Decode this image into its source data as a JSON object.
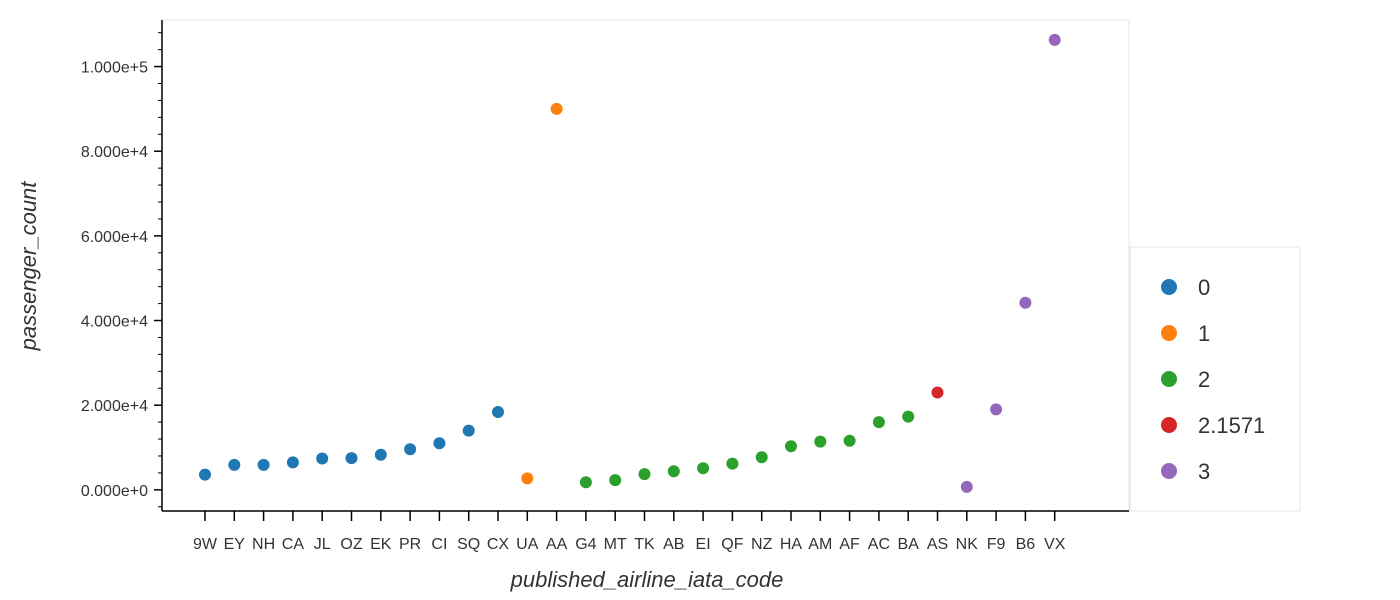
{
  "chart_data": {
    "type": "scatter",
    "xlabel": "published_airline_iata_code",
    "ylabel": "passenger_count",
    "categories": [
      "9W",
      "EY",
      "NH",
      "CA",
      "JL",
      "OZ",
      "EK",
      "PR",
      "CI",
      "SQ",
      "CX",
      "UA",
      "AA",
      "G4",
      "MT",
      "TK",
      "AB",
      "EI",
      "QF",
      "NZ",
      "HA",
      "AM",
      "AF",
      "AC",
      "BA",
      "AS",
      "NK",
      "F9",
      "B6",
      "VX"
    ],
    "ylim": [
      -5000,
      111000
    ],
    "yticks": [
      0,
      20000,
      40000,
      60000,
      80000,
      100000
    ],
    "ytick_labels": [
      "0.000e+0",
      "2.000e+4",
      "4.000e+4",
      "6.000e+4",
      "8.000e+4",
      "1.000e+5"
    ],
    "grid": false,
    "legend_position": "right",
    "series": [
      {
        "name": "0",
        "color": "#1f77b4",
        "points": [
          [
            "9W",
            3600
          ],
          [
            "EY",
            5900
          ],
          [
            "NH",
            5900
          ],
          [
            "CA",
            6500
          ],
          [
            "JL",
            7400
          ],
          [
            "OZ",
            7500
          ],
          [
            "EK",
            8300
          ],
          [
            "PR",
            9600
          ],
          [
            "CI",
            11000
          ],
          [
            "SQ",
            14000
          ],
          [
            "CX",
            18400
          ]
        ]
      },
      {
        "name": "1",
        "color": "#ff7f0e",
        "points": [
          [
            "UA",
            2700
          ],
          [
            "AA",
            90000
          ]
        ]
      },
      {
        "name": "2",
        "color": "#2ca02c",
        "points": [
          [
            "G4",
            1800
          ],
          [
            "MT",
            2300
          ],
          [
            "TK",
            3700
          ],
          [
            "AB",
            4400
          ],
          [
            "EI",
            5100
          ],
          [
            "QF",
            6200
          ],
          [
            "NZ",
            7700
          ],
          [
            "HA",
            10300
          ],
          [
            "AM",
            11400
          ],
          [
            "AF",
            11600
          ],
          [
            "AC",
            16000
          ],
          [
            "BA",
            17300
          ]
        ]
      },
      {
        "name": "2.1571",
        "color": "#d62728",
        "points": [
          [
            "AS",
            23000
          ]
        ]
      },
      {
        "name": "3",
        "color": "#9467bd",
        "points": [
          [
            "NK",
            700
          ],
          [
            "F9",
            19000
          ],
          [
            "B6",
            44200
          ],
          [
            "VX",
            106300
          ]
        ]
      }
    ]
  }
}
